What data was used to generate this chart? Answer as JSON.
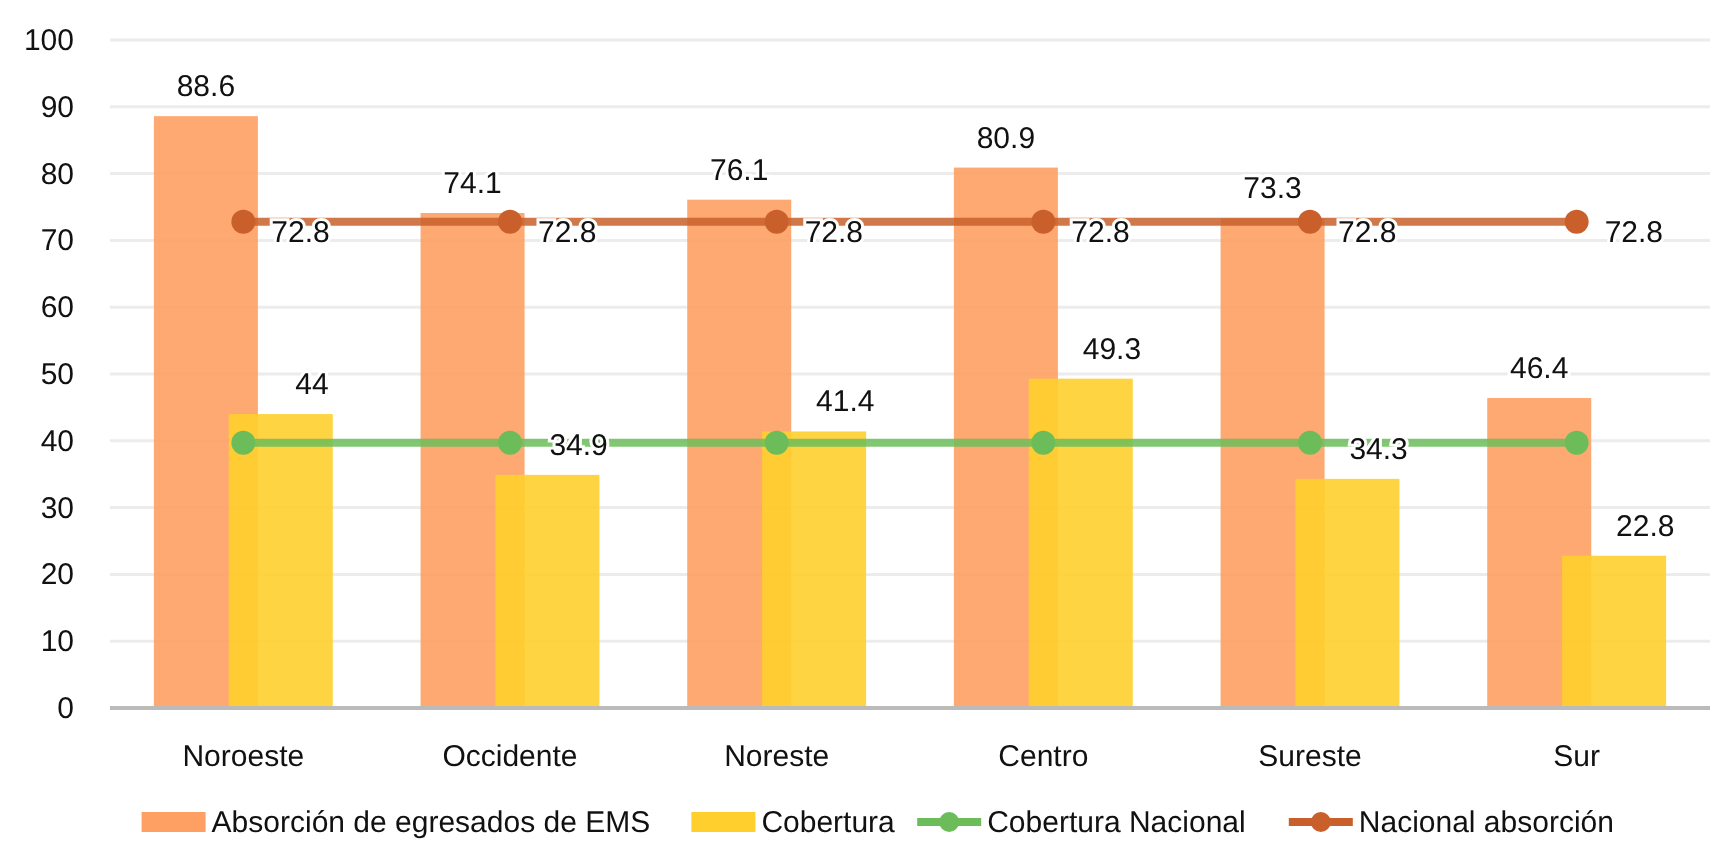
{
  "chart_data": {
    "type": "bar",
    "categories": [
      "Noroeste",
      "Occidente",
      "Noreste",
      "Centro",
      "Sureste",
      "Sur"
    ],
    "series": [
      {
        "name": "Absorción de egresados de EMS",
        "color": "#fe9f63",
        "values": [
          88.6,
          74.1,
          76.1,
          80.9,
          73.3,
          46.4
        ],
        "value_labels": [
          "88.6",
          "74.1",
          "76.1",
          "80.9",
          "73.3",
          "46.4"
        ]
      },
      {
        "name": "Cobertura",
        "color": "#ffcf2e",
        "values": [
          44,
          34.9,
          41.4,
          49.3,
          34.3,
          22.8
        ],
        "value_labels": [
          "44",
          "34.9",
          "41.4",
          "49.3",
          "34.3",
          "22.8"
        ]
      },
      {
        "name": "Cobertura Nacional",
        "type": "line",
        "color": "#6cbd5a",
        "values": [
          39.7,
          39.7,
          39.7,
          39.7,
          39.7,
          39.7
        ]
      },
      {
        "name": "Nacional absorción",
        "type": "line",
        "color": "#c9602c",
        "values": [
          72.8,
          72.8,
          72.8,
          72.8,
          72.8,
          72.8
        ],
        "value_labels": [
          "72.8",
          "72.8",
          "72.8",
          "72.8",
          "72.8",
          "72.8"
        ]
      }
    ],
    "ylim": [
      0,
      100
    ],
    "yticks": [
      0,
      10,
      20,
      30,
      40,
      50,
      60,
      70,
      80,
      90,
      100
    ],
    "grid": "y",
    "legend": "bottom",
    "marker": "circle",
    "line_style": "solid"
  }
}
